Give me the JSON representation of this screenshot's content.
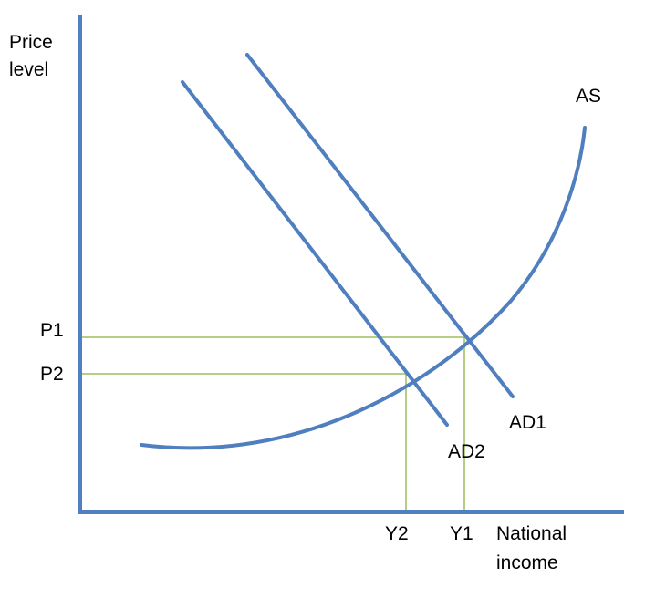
{
  "diagram": {
    "y_axis_label_line1": "Price",
    "y_axis_label_line2": "level",
    "x_axis_label_line1": "National",
    "x_axis_label_line2": "income",
    "curves": {
      "as": "AS",
      "ad1": "AD1",
      "ad2": "AD2"
    },
    "price_levels": {
      "p1": "P1",
      "p2": "P2"
    },
    "incomes": {
      "y1": "Y1",
      "y2": "Y2"
    },
    "colors": {
      "curve": "#4f7fbf",
      "axis": "#4f7fbf",
      "guide": "#9bbf5a",
      "text": "#000000"
    }
  }
}
